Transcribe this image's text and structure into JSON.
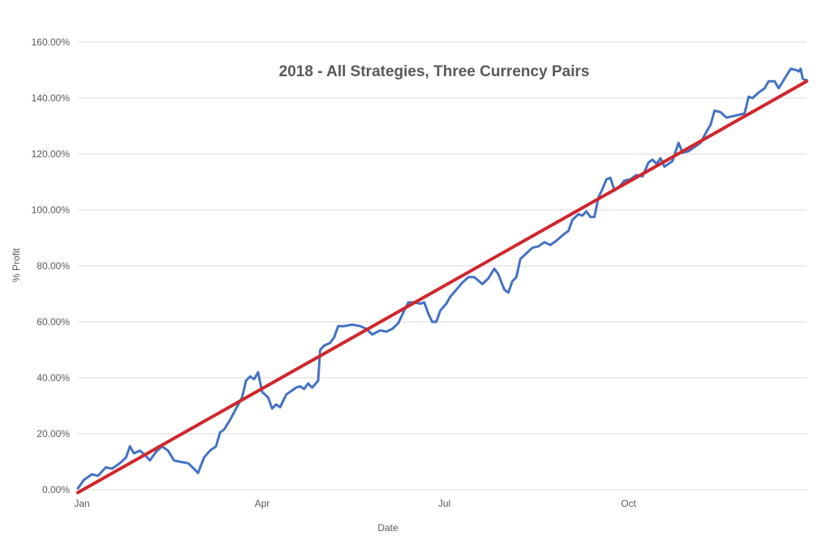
{
  "chart_data": {
    "type": "line",
    "title": "2018 - All Strategies, Three Currency Pairs",
    "xlabel": "Date",
    "ylabel": "% Profit",
    "ylim": [
      0,
      160
    ],
    "yticks": [
      0,
      20,
      40,
      60,
      80,
      100,
      120,
      140,
      160
    ],
    "ytick_labels": [
      "0.00%",
      "20.00%",
      "40.00%",
      "60.00%",
      "80.00%",
      "100.00%",
      "120.00%",
      "140.00%",
      "160.00%"
    ],
    "x_range": [
      "2018-01-01",
      "2018-12-31"
    ],
    "xtick_labels": [
      {
        "label": "Jan",
        "date": "2018-01-01"
      },
      {
        "label": "Apr",
        "date": "2018-04-01"
      },
      {
        "label": "Jul",
        "date": "2018-07-01"
      },
      {
        "label": "Oct",
        "date": "2018-10-01"
      }
    ],
    "grid": true,
    "series": [
      {
        "color": "#4472c4",
        "points": [
          [
            "2018-01-01",
            0.5
          ],
          [
            "2018-01-04",
            3.5
          ],
          [
            "2018-01-08",
            5.5
          ],
          [
            "2018-01-11",
            5.0
          ],
          [
            "2018-01-15",
            8.0
          ],
          [
            "2018-01-18",
            7.5
          ],
          [
            "2018-01-22",
            9.5
          ],
          [
            "2018-01-25",
            11.5
          ],
          [
            "2018-01-27",
            15.5
          ],
          [
            "2018-01-29",
            13.0
          ],
          [
            "2018-02-01",
            14.0
          ],
          [
            "2018-02-04",
            12.0
          ],
          [
            "2018-02-06",
            10.5
          ],
          [
            "2018-02-09",
            13.5
          ],
          [
            "2018-02-12",
            15.5
          ],
          [
            "2018-02-15",
            14.0
          ],
          [
            "2018-02-18",
            10.5
          ],
          [
            "2018-02-21",
            10.0
          ],
          [
            "2018-02-25",
            9.5
          ],
          [
            "2018-02-28",
            7.5
          ],
          [
            "2018-03-02",
            6.0
          ],
          [
            "2018-03-05",
            11.5
          ],
          [
            "2018-03-08",
            14.0
          ],
          [
            "2018-03-11",
            15.5
          ],
          [
            "2018-03-13",
            20.5
          ],
          [
            "2018-03-15",
            21.5
          ],
          [
            "2018-03-18",
            25.0
          ],
          [
            "2018-03-21",
            29.0
          ],
          [
            "2018-03-24",
            33.0
          ],
          [
            "2018-03-26",
            39.0
          ],
          [
            "2018-03-28",
            40.5
          ],
          [
            "2018-03-30",
            39.5
          ],
          [
            "2018-04-01",
            42.0
          ],
          [
            "2018-04-03",
            35.0
          ],
          [
            "2018-04-06",
            33.0
          ],
          [
            "2018-04-08",
            29.0
          ],
          [
            "2018-04-10",
            30.5
          ],
          [
            "2018-04-12",
            29.5
          ],
          [
            "2018-04-15",
            34.0
          ],
          [
            "2018-04-18",
            35.5
          ],
          [
            "2018-04-20",
            36.5
          ],
          [
            "2018-04-22",
            37.0
          ],
          [
            "2018-04-24",
            36.0
          ],
          [
            "2018-04-26",
            38.0
          ],
          [
            "2018-04-28",
            36.5
          ],
          [
            "2018-05-01",
            39.0
          ],
          [
            "2018-05-02",
            50.0
          ],
          [
            "2018-05-04",
            51.5
          ],
          [
            "2018-05-07",
            52.5
          ],
          [
            "2018-05-09",
            54.5
          ],
          [
            "2018-05-11",
            58.5
          ],
          [
            "2018-05-14",
            58.5
          ],
          [
            "2018-05-18",
            59.0
          ],
          [
            "2018-05-22",
            58.5
          ],
          [
            "2018-05-25",
            57.5
          ],
          [
            "2018-05-28",
            55.5
          ],
          [
            "2018-06-01",
            57.0
          ],
          [
            "2018-06-04",
            56.5
          ],
          [
            "2018-06-07",
            57.5
          ],
          [
            "2018-06-10",
            59.5
          ],
          [
            "2018-06-13",
            64.0
          ],
          [
            "2018-06-15",
            67.0
          ],
          [
            "2018-06-18",
            67.0
          ],
          [
            "2018-06-21",
            66.5
          ],
          [
            "2018-06-23",
            67.0
          ],
          [
            "2018-06-25",
            63.0
          ],
          [
            "2018-06-27",
            60.0
          ],
          [
            "2018-06-29",
            60.0
          ],
          [
            "2018-07-01",
            64.0
          ],
          [
            "2018-07-04",
            66.5
          ],
          [
            "2018-07-06",
            69.0
          ],
          [
            "2018-07-09",
            71.5
          ],
          [
            "2018-07-12",
            74.0
          ],
          [
            "2018-07-15",
            76.0
          ],
          [
            "2018-07-18",
            76.0
          ],
          [
            "2018-07-22",
            73.5
          ],
          [
            "2018-07-25",
            75.5
          ],
          [
            "2018-07-28",
            79.0
          ],
          [
            "2018-07-30",
            77.0
          ],
          [
            "2018-08-02",
            71.5
          ],
          [
            "2018-08-04",
            70.5
          ],
          [
            "2018-08-06",
            74.5
          ],
          [
            "2018-08-08",
            76.0
          ],
          [
            "2018-08-10",
            82.5
          ],
          [
            "2018-08-13",
            84.5
          ],
          [
            "2018-08-16",
            86.5
          ],
          [
            "2018-08-19",
            87.0
          ],
          [
            "2018-08-22",
            88.5
          ],
          [
            "2018-08-25",
            87.5
          ],
          [
            "2018-08-28",
            89.0
          ],
          [
            "2018-09-01",
            91.5
          ],
          [
            "2018-09-03",
            92.5
          ],
          [
            "2018-09-05",
            96.5
          ],
          [
            "2018-09-08",
            98.5
          ],
          [
            "2018-09-10",
            98.0
          ],
          [
            "2018-09-12",
            99.5
          ],
          [
            "2018-09-14",
            97.5
          ],
          [
            "2018-09-16",
            97.5
          ],
          [
            "2018-09-18",
            104.5
          ],
          [
            "2018-09-20",
            107.5
          ],
          [
            "2018-09-22",
            111.0
          ],
          [
            "2018-09-24",
            111.5
          ],
          [
            "2018-09-26",
            107.0
          ],
          [
            "2018-09-28",
            108.0
          ],
          [
            "2018-10-01",
            110.5
          ],
          [
            "2018-10-04",
            111.0
          ],
          [
            "2018-10-07",
            112.5
          ],
          [
            "2018-10-10",
            112.0
          ],
          [
            "2018-10-13",
            117.0
          ],
          [
            "2018-10-15",
            118.0
          ],
          [
            "2018-10-17",
            116.5
          ],
          [
            "2018-10-19",
            118.5
          ],
          [
            "2018-10-21",
            115.5
          ],
          [
            "2018-10-25",
            117.5
          ],
          [
            "2018-10-28",
            124.0
          ],
          [
            "2018-10-30",
            120.5
          ],
          [
            "2018-11-02",
            121.0
          ],
          [
            "2018-11-05",
            122.5
          ],
          [
            "2018-11-08",
            124.0
          ],
          [
            "2018-11-11",
            128.0
          ],
          [
            "2018-11-13",
            130.5
          ],
          [
            "2018-11-15",
            135.5
          ],
          [
            "2018-11-18",
            135.0
          ],
          [
            "2018-11-21",
            133.0
          ],
          [
            "2018-11-24",
            133.5
          ],
          [
            "2018-11-27",
            134.0
          ],
          [
            "2018-11-30",
            134.5
          ],
          [
            "2018-12-02",
            140.5
          ],
          [
            "2018-12-04",
            140.0
          ],
          [
            "2018-12-07",
            142.0
          ],
          [
            "2018-12-10",
            143.5
          ],
          [
            "2018-12-12",
            146.0
          ],
          [
            "2018-12-15",
            146.0
          ],
          [
            "2018-12-17",
            143.5
          ],
          [
            "2018-12-20",
            147.0
          ],
          [
            "2018-12-23",
            150.5
          ],
          [
            "2018-12-26",
            150.0
          ],
          [
            "2018-12-27",
            149.5
          ],
          [
            "2018-12-28",
            150.5
          ],
          [
            "2018-12-29",
            147.0
          ],
          [
            "2018-12-30",
            146.5
          ],
          [
            "2018-12-31",
            146.5
          ]
        ]
      },
      {
        "color": "#d0262c",
        "points": [
          [
            "2018-01-01",
            -1.0
          ],
          [
            "2018-12-31",
            146.0
          ]
        ]
      }
    ]
  }
}
